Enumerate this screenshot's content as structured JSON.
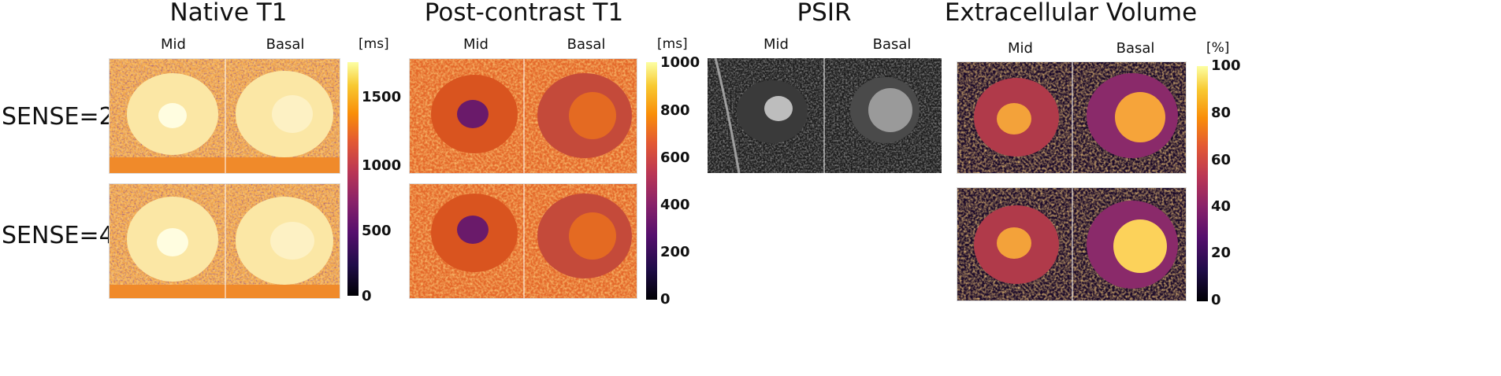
{
  "rows": [
    "SENSE=2",
    "SENSE=4"
  ],
  "colors": {
    "inferno_dark": "#000004",
    "inferno_purple": "#57106e",
    "inferno_orange": "#f07e1a",
    "inferno_light": "#fcffa4",
    "psir_gray": "#2a2a2a"
  },
  "panels": [
    {
      "title": "Native T1",
      "columns": [
        "Mid",
        "Basal"
      ],
      "unit": "[ms]",
      "ticks": [
        "1500",
        "1000",
        "500",
        "0"
      ],
      "colormap": "inferno"
    },
    {
      "title": "Post-contrast T1",
      "columns": [
        "Mid",
        "Basal"
      ],
      "unit": "[ms]",
      "ticks": [
        "1000",
        "800",
        "600",
        "400",
        "200",
        "0"
      ],
      "colormap": "inferno"
    },
    {
      "title": "PSIR",
      "columns": [
        "Mid",
        "Basal"
      ],
      "colormap": "gray"
    },
    {
      "title": "Extracellular Volume",
      "columns": [
        "Mid",
        "Basal"
      ],
      "unit": "[%]",
      "ticks": [
        "100",
        "80",
        "60",
        "40",
        "20",
        "0"
      ],
      "colormap": "inferno"
    }
  ]
}
